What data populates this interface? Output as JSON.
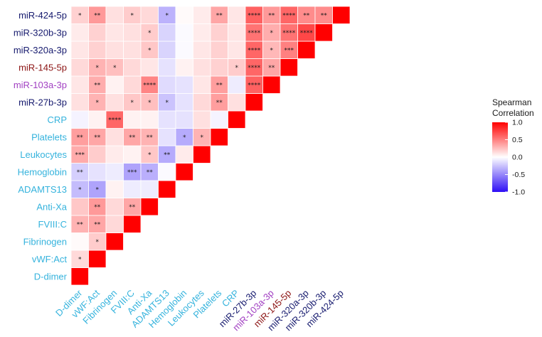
{
  "chart_data": {
    "type": "heatmap",
    "shape": "lower-triangular correlation matrix",
    "variables": [
      "D-dimer",
      "vWF:Act",
      "Fibrinogen",
      "FVIII:C",
      "Anti-Xa",
      "ADAMTS13",
      "Hemoglobin",
      "Leukocytes",
      "Platelets",
      "CRP",
      "miR-27b-3p",
      "miR-103a-3p",
      "miR-145-5p",
      "miR-320a-3p",
      "miR-320b-3p",
      "miR-424-5p"
    ],
    "label_colors": {
      "D-dimer": "#35b3dd",
      "vWF:Act": "#35b3dd",
      "Fibrinogen": "#35b3dd",
      "FVIII:C": "#35b3dd",
      "Anti-Xa": "#35b3dd",
      "ADAMTS13": "#35b3dd",
      "Hemoglobin": "#35b3dd",
      "Leukocytes": "#35b3dd",
      "Platelets": "#35b3dd",
      "CRP": "#35b3dd",
      "miR-27b-3p": "#161a6e",
      "miR-103a-3p": "#a13fc2",
      "miR-145-5p": "#8c1414",
      "miR-320a-3p": "#161a6e",
      "miR-320b-3p": "#161a6e",
      "miR-424-5p": "#161a6e"
    },
    "rows": [
      {
        "name": "D-dimer",
        "values": [
          1,
          0.15,
          0.02,
          0.3,
          0.22,
          -0.28,
          -0.2,
          0.33,
          0.38,
          -0.05,
          0.12,
          0.1,
          0.15,
          0.1,
          0.08,
          0.18
        ],
        "stars": [
          "",
          "*",
          "",
          "**",
          "",
          "*",
          "**",
          "***",
          "**",
          "",
          "",
          "",
          "",
          "",
          "",
          "*"
        ]
      },
      {
        "name": "vWF:Act",
        "values": [
          0.15,
          1,
          0.2,
          0.35,
          0.4,
          -0.38,
          -0.12,
          0.2,
          0.35,
          0.05,
          0.3,
          0.32,
          0.3,
          0.18,
          0.18,
          0.4
        ],
        "stars": [
          "*",
          "",
          "*",
          "**",
          "**",
          "*",
          "",
          "",
          "**",
          "",
          "*",
          "**",
          "*",
          "",
          "",
          "**"
        ]
      },
      {
        "name": "Fibrinogen",
        "values": [
          0.02,
          0.2,
          1,
          0.15,
          0.15,
          0.05,
          -0.08,
          0.08,
          0.12,
          0.6,
          0.12,
          0.05,
          0.25,
          0.12,
          0.1,
          0.12
        ],
        "stars": [
          "",
          "*",
          "",
          "",
          "",
          "",
          "",
          "",
          "",
          "****",
          "",
          "",
          "*",
          "",
          "",
          ""
        ]
      },
      {
        "name": "FVIII:C",
        "values": [
          0.3,
          0.35,
          0.15,
          1,
          0.35,
          -0.08,
          -0.38,
          0.05,
          0.35,
          0.05,
          0.22,
          0.15,
          0.15,
          0.12,
          0.12,
          0.2
        ],
        "stars": [
          "**",
          "**",
          "",
          "",
          "**",
          "",
          "***",
          "",
          "**",
          "",
          "*",
          "",
          "",
          "",
          "",
          "*"
        ]
      },
      {
        "name": "Anti-Xa",
        "values": [
          0.22,
          0.4,
          0.15,
          0.35,
          1,
          -0.08,
          -0.33,
          0.22,
          0.3,
          0.05,
          0.25,
          0.48,
          0.1,
          0.22,
          0.2,
          0.15
        ],
        "stars": [
          "",
          "**",
          "",
          "**",
          "",
          "",
          "**",
          "*",
          "**",
          "",
          "*",
          "****",
          "",
          "*",
          "*",
          ""
        ]
      },
      {
        "name": "ADAMTS13",
        "values": [
          -0.28,
          -0.38,
          0.05,
          -0.08,
          -0.08,
          1,
          -0.02,
          -0.35,
          -0.12,
          -0.12,
          -0.25,
          -0.15,
          -0.12,
          -0.18,
          -0.18,
          -0.32
        ],
        "stars": [
          "*",
          "*",
          "",
          "",
          "",
          "",
          "",
          "**",
          "",
          "",
          "*",
          "",
          "",
          "",
          "",
          "*"
        ]
      },
      {
        "name": "Hemoglobin",
        "values": [
          -0.2,
          -0.12,
          -0.08,
          -0.38,
          -0.33,
          -0.02,
          1,
          0.08,
          -0.35,
          -0.12,
          -0.12,
          -0.12,
          0.05,
          -0.02,
          -0.02,
          0.02
        ],
        "stars": [
          "**",
          "",
          "",
          "***",
          "**",
          "",
          "",
          "",
          "*",
          "",
          "",
          "",
          "",
          "",
          "",
          ""
        ]
      },
      {
        "name": "Leukocytes",
        "values": [
          0.33,
          0.2,
          0.08,
          0.05,
          0.22,
          -0.35,
          0.08,
          1,
          0.3,
          0.12,
          0.15,
          0.1,
          0.12,
          0.1,
          0.08,
          0.08
        ],
        "stars": [
          "***",
          "",
          "",
          "",
          "*",
          "**",
          "",
          "",
          "*",
          "",
          "",
          "",
          "",
          "",
          "",
          ""
        ]
      },
      {
        "name": "Platelets",
        "values": [
          0.38,
          0.35,
          0.12,
          0.35,
          0.3,
          -0.12,
          -0.35,
          0.3,
          1,
          -0.05,
          0.38,
          0.38,
          0.18,
          0.18,
          0.18,
          0.35
        ],
        "stars": [
          "**",
          "**",
          "",
          "**",
          "**",
          "",
          "*",
          "*",
          "",
          "",
          "**",
          "**",
          "",
          "",
          "",
          "**"
        ]
      },
      {
        "name": "CRP",
        "values": [
          -0.05,
          0.05,
          0.6,
          0.05,
          0.05,
          -0.12,
          -0.12,
          0.12,
          -0.05,
          1,
          0.12,
          -0.08,
          0.2,
          0.1,
          0.1,
          0.1
        ],
        "stars": [
          "",
          "",
          "****",
          "",
          "",
          "",
          "",
          "",
          "",
          "",
          "",
          "",
          "*",
          "",
          "",
          ""
        ]
      },
      {
        "name": "miR-27b-3p",
        "values": [
          0.12,
          0.3,
          0.12,
          0.22,
          0.25,
          -0.25,
          -0.12,
          0.15,
          0.38,
          0.12,
          1,
          0.62,
          0.6,
          0.6,
          0.55,
          0.62
        ],
        "stars": [
          "",
          "*",
          "",
          "*",
          "*",
          "*",
          "",
          "",
          "**",
          "",
          "",
          "****",
          "****",
          "****",
          "****",
          "****"
        ]
      },
      {
        "name": "miR-103a-3p",
        "values": [
          0.1,
          0.32,
          0.05,
          0.15,
          0.48,
          -0.15,
          -0.12,
          0.1,
          0.38,
          -0.08,
          0.62,
          1,
          0.35,
          0.28,
          0.32,
          0.4
        ],
        "stars": [
          "",
          "**",
          "",
          "",
          "****",
          "",
          "",
          "",
          "**",
          "",
          "****",
          "",
          "**",
          "*",
          "*",
          "**"
        ]
      },
      {
        "name": "miR-145-5p",
        "values": [
          0.15,
          0.3,
          0.25,
          0.15,
          0.1,
          -0.12,
          0.05,
          0.12,
          0.18,
          0.2,
          0.6,
          0.35,
          1,
          0.5,
          0.55,
          0.6
        ],
        "stars": [
          "",
          "*",
          "*",
          "",
          "",
          "",
          "",
          "",
          "",
          "*",
          "****",
          "**",
          "",
          "***",
          "****",
          "****"
        ]
      },
      {
        "name": "miR-320a-3p",
        "values": [
          0.1,
          0.18,
          0.12,
          0.12,
          0.22,
          -0.18,
          -0.02,
          0.1,
          0.18,
          0.1,
          0.6,
          0.28,
          0.5,
          1,
          0.72,
          0.45
        ],
        "stars": [
          "",
          "",
          "",
          "",
          "*",
          "",
          "",
          "",
          "",
          "",
          "****",
          "*",
          "***",
          "",
          "****",
          "**"
        ]
      },
      {
        "name": "miR-320b-3p",
        "values": [
          0.08,
          0.18,
          0.1,
          0.12,
          0.2,
          -0.18,
          -0.02,
          0.08,
          0.18,
          0.1,
          0.55,
          0.32,
          0.55,
          0.72,
          1,
          0.45
        ],
        "stars": [
          "",
          "",
          "",
          "",
          "*",
          "",
          "",
          "",
          "",
          "",
          "****",
          "*",
          "****",
          "****",
          "",
          "**"
        ]
      },
      {
        "name": "miR-424-5p",
        "values": [
          0.18,
          0.4,
          0.12,
          0.2,
          0.15,
          -0.32,
          0.02,
          0.08,
          0.35,
          0.1,
          0.62,
          0.4,
          0.6,
          0.45,
          0.45,
          1
        ],
        "stars": [
          "*",
          "**",
          "",
          "*",
          "",
          "*",
          "",
          "",
          "**",
          "",
          "****",
          "**",
          "****",
          "**",
          "**",
          ""
        ]
      }
    ],
    "legend": {
      "title_line1": "Spearman",
      "title_line2": "Correlation",
      "ticks": [
        "1.0",
        "0.5",
        "0.0",
        "-0.5",
        "-1.0"
      ],
      "tick_values": [
        1,
        0.5,
        0,
        -0.5,
        -1
      ],
      "colors": {
        "high": "#ff0000",
        "mid": "#ffffff",
        "low": "#2d0ef5"
      }
    }
  }
}
